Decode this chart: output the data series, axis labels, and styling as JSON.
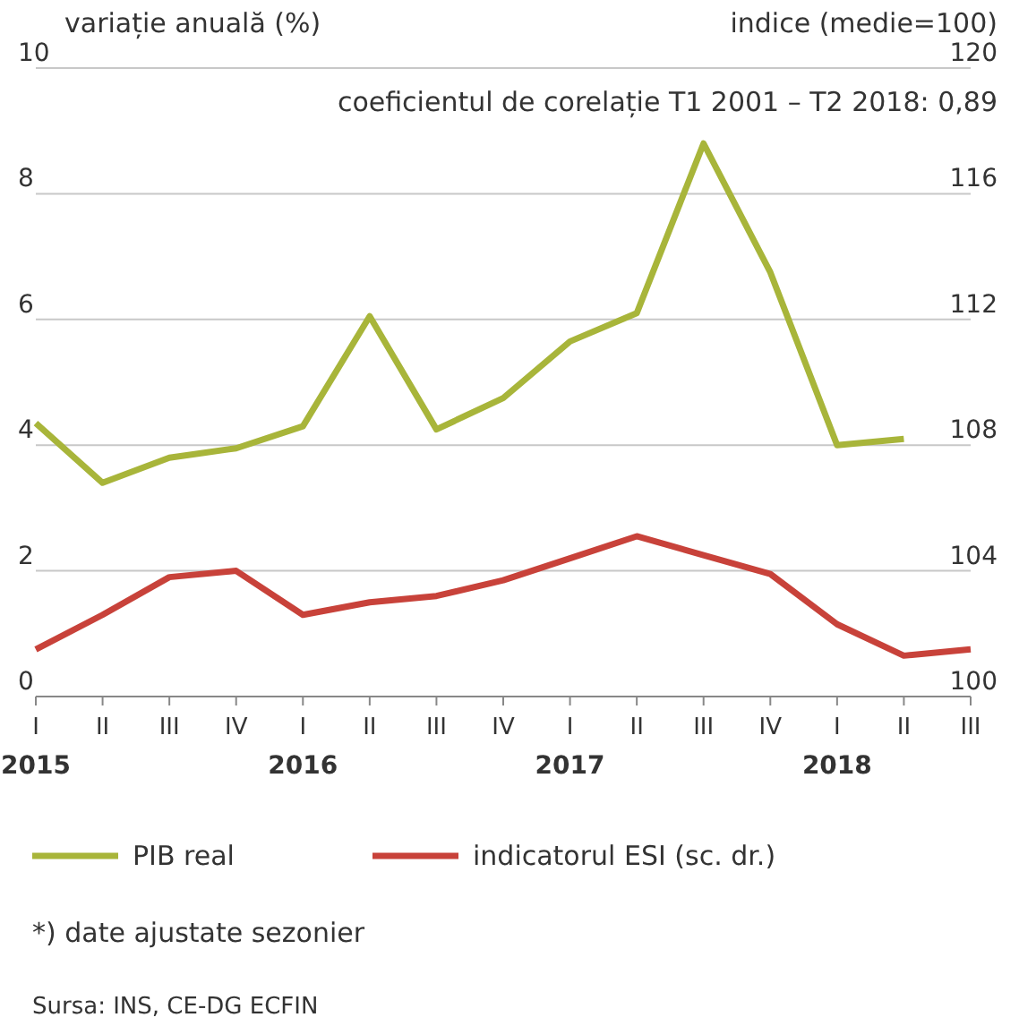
{
  "chart_data": {
    "type": "line",
    "ylabel": "variație anuală (%)",
    "y2label": "indice (medie=100)",
    "categories": [
      "I\n2015",
      "II",
      "III",
      "IV",
      "I\n2016",
      "II",
      "III",
      "IV",
      "I\n2017",
      "II",
      "III",
      "IV",
      "I\n2018",
      "II",
      "III"
    ],
    "series": [
      {
        "name": "PIB real",
        "color": "#a8b53a",
        "values": [
          4.35,
          3.4,
          3.8,
          3.95,
          4.3,
          6.05,
          4.25,
          4.75,
          5.65,
          6.1,
          8.8,
          6.75,
          4.0,
          4.1,
          null
        ]
      },
      {
        "name": "indicatorul ESI (sc. dr.)",
        "color": "#c8423a",
        "axis": "y2",
        "values": [
          101.5,
          102.6,
          103.8,
          104.0,
          102.6,
          103.0,
          103.2,
          103.7,
          104.4,
          105.1,
          104.5,
          103.9,
          102.3,
          101.3,
          101.5
        ]
      }
    ],
    "ylim": [
      0,
      10
    ],
    "yticks": [
      0,
      2,
      4,
      6,
      8,
      10
    ],
    "y2lim": [
      100,
      120
    ],
    "y2ticks": [
      100,
      104,
      108,
      112,
      116,
      120
    ],
    "grid": "y",
    "legend": "bottom",
    "line_style": "solid",
    "marker": "none",
    "annotations": [
      "coeficientul de corelație T1 2001 – T2 2018: 0,89",
      "*) date ajustate sezonier",
      "Sursa: INS, CE-DG ECFIN"
    ]
  }
}
